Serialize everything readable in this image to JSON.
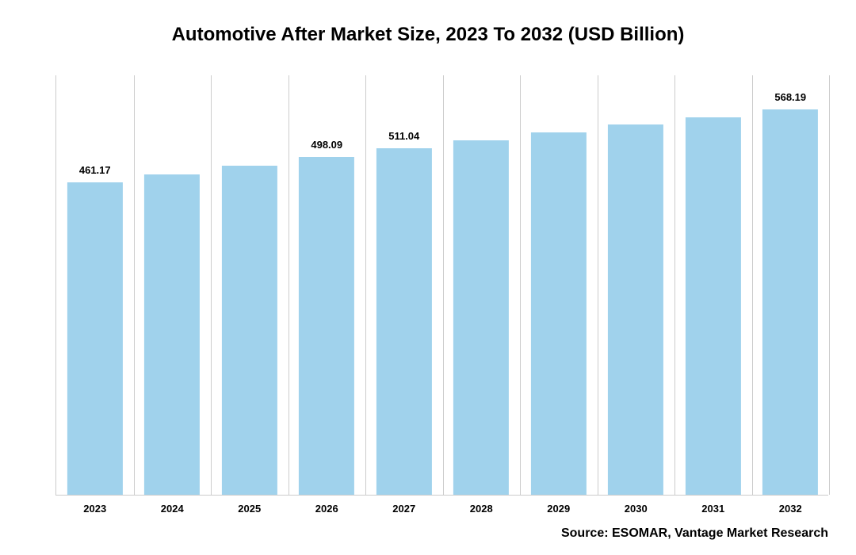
{
  "chart": {
    "type": "bar",
    "title": "Automotive After Market Size, 2023 To 2032 (USD Billion)",
    "title_fontsize": 24,
    "title_fontweight": "bold",
    "title_color": "#000000",
    "source": "Source: ESOMAR, Vantage Market Research",
    "source_fontsize": 16,
    "source_fontweight": "bold",
    "background_color": "#ffffff",
    "plot_background": "#ffffff",
    "grid_color": "#cccccc",
    "axis_line_color": "#cccccc",
    "categories": [
      "2023",
      "2024",
      "2025",
      "2026",
      "2027",
      "2028",
      "2029",
      "2030",
      "2031",
      "2032"
    ],
    "values": [
      461.17,
      473.0,
      485.0,
      498.09,
      511.04,
      523.0,
      535.0,
      546.0,
      557.0,
      568.19
    ],
    "value_labels": [
      "461.17",
      "",
      "",
      "498.09",
      "511.04",
      "",
      "",
      "",
      "",
      "568.19"
    ],
    "bar_color": "#a0d2ec",
    "bar_width_ratio": 0.72,
    "bar_label_fontsize": 13,
    "bar_label_fontweight": "bold",
    "bar_label_color": "#000000",
    "x_tick_fontsize": 13,
    "x_tick_fontweight": "bold",
    "x_tick_color": "#000000",
    "ylim": [
      0,
      620
    ],
    "y_grid_values": [
      0,
      100,
      200,
      300,
      400,
      500,
      600
    ],
    "show_y_labels": false
  }
}
